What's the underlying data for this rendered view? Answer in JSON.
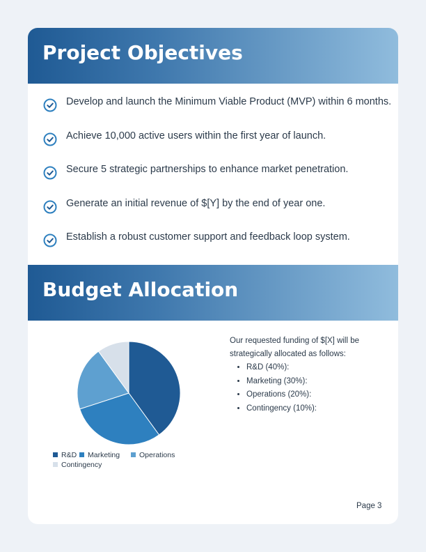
{
  "objectives": {
    "heading": "Project Objectives",
    "items": [
      "Develop and launch the Minimum Viable Product (MVP) within 6 months.",
      "Achieve 10,000 active users within the first year of launch.",
      "Secure 5 strategic partnerships to enhance market penetration.",
      "Generate an initial revenue of $[Y] by the end of year one.",
      "Establish a robust customer support and feedback loop system."
    ],
    "icon": "check-circle-icon"
  },
  "budget": {
    "heading": "Budget Allocation",
    "intro": "Our requested funding of $[X] will be strategically allocated as follows:",
    "breakdown": [
      "R&D (40%):",
      "Marketing (30%):",
      "Operations (20%):",
      "Contingency (10%):"
    ]
  },
  "chart_data": {
    "type": "pie",
    "categories": [
      "R&D",
      "Marketing",
      "Operations",
      "Contingency"
    ],
    "values": [
      40,
      30,
      20,
      10
    ],
    "colors": [
      "#1f5a94",
      "#2e80bf",
      "#5ea0d0",
      "#d7e0ea"
    ],
    "legend": "bottom"
  },
  "footer": {
    "page": "Page 3"
  },
  "colors": {
    "accent": "#1f5a94",
    "text": "#2b3a4a",
    "background": "#eef2f7"
  }
}
